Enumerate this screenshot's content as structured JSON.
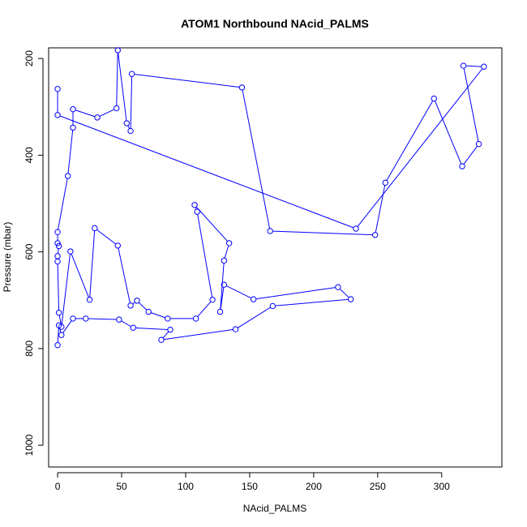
{
  "chart_data": {
    "type": "scatter",
    "title": "ATOM1 Northbound NAcid_PALMS",
    "xlabel": "NAcid_PALMS",
    "ylabel": "Pressure (mbar)",
    "xlim": [
      -7,
      347
    ],
    "ylim": [
      1045,
      178
    ],
    "y_reversed": true,
    "x_ticks": [
      0,
      50,
      100,
      150,
      200,
      250,
      300
    ],
    "y_ticks": [
      200,
      400,
      600,
      800,
      1000
    ],
    "grid": false,
    "legend": "none",
    "series_color": "#0000ff",
    "marker": "open-circle",
    "points": [
      [
        0,
        793
      ],
      [
        1,
        752
      ],
      [
        3,
        772
      ],
      [
        12,
        738
      ],
      [
        22,
        738
      ],
      [
        48,
        740
      ],
      [
        59,
        757
      ],
      [
        88,
        761
      ],
      [
        81,
        782
      ],
      [
        139,
        760
      ],
      [
        168,
        712
      ],
      [
        229,
        698
      ],
      [
        219,
        673
      ],
      [
        153,
        698
      ],
      [
        130,
        668
      ],
      [
        127,
        724
      ],
      [
        130,
        618
      ],
      [
        134,
        582
      ],
      [
        107,
        503
      ],
      [
        109,
        517
      ],
      [
        121,
        699
      ],
      [
        108,
        738
      ],
      [
        86,
        738
      ],
      [
        71,
        724
      ],
      [
        62,
        701
      ],
      [
        57,
        711
      ],
      [
        47,
        587
      ],
      [
        29,
        551
      ],
      [
        25,
        699
      ],
      [
        10,
        599
      ],
      [
        3,
        755
      ],
      [
        1,
        726
      ],
      [
        0,
        620
      ],
      [
        0,
        609
      ],
      [
        1,
        588
      ],
      [
        0,
        582
      ],
      [
        0,
        559
      ],
      [
        8,
        443
      ],
      [
        12,
        343
      ],
      [
        12,
        305
      ],
      [
        31,
        322
      ],
      [
        46,
        303
      ],
      [
        47,
        183
      ],
      [
        54,
        334
      ],
      [
        57,
        350
      ],
      [
        58,
        232
      ],
      [
        144,
        260
      ],
      [
        166,
        557
      ],
      [
        248,
        565
      ],
      [
        256,
        457
      ],
      [
        294,
        283
      ],
      [
        316,
        423
      ],
      [
        329,
        377
      ],
      [
        317,
        215
      ],
      [
        333,
        217
      ],
      [
        233,
        552
      ],
      [
        0,
        317
      ],
      [
        0,
        263
      ]
    ]
  }
}
